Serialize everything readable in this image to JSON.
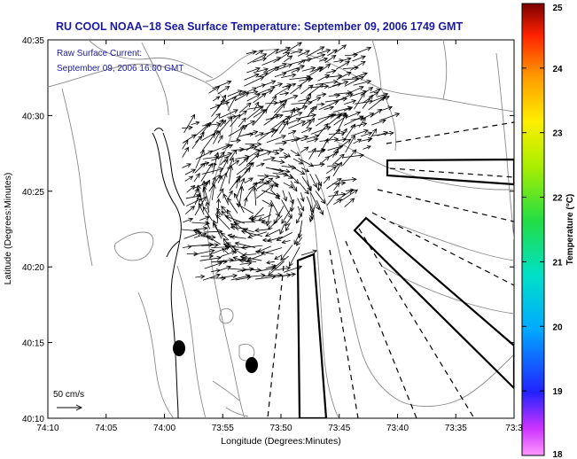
{
  "title": "RU COOL  NOAA−18  Sea Surface Temperature:  September 09, 2006 1749 GMT",
  "legend_box": {
    "line1": "Raw Surface Current:",
    "line2": "September 09, 2006 16:00 GMT"
  },
  "scale_label": "50 cm/s",
  "axes": {
    "xlabel": "Longitude (Degrees:Minutes)",
    "ylabel": "Latitude (Degrees:Minutes)",
    "x_ticks": [
      "74:10",
      "74:05",
      "74:00",
      "73:55",
      "73:50",
      "73:45",
      "73:40",
      "73:35",
      "73:3"
    ],
    "y_ticks": [
      "40:35",
      "40:30",
      "40:25",
      "40:20",
      "40:15",
      "40:10"
    ]
  },
  "colorbar": {
    "label": "Temperature (°C)",
    "ticks": [
      "25",
      "24",
      "23",
      "22",
      "21",
      "20",
      "19",
      "18"
    ],
    "min": 18,
    "max": 25
  },
  "colors": {
    "title": "#1a1aa0",
    "frame": "#000000",
    "contour": "#888888",
    "arrow": "#000000"
  }
}
